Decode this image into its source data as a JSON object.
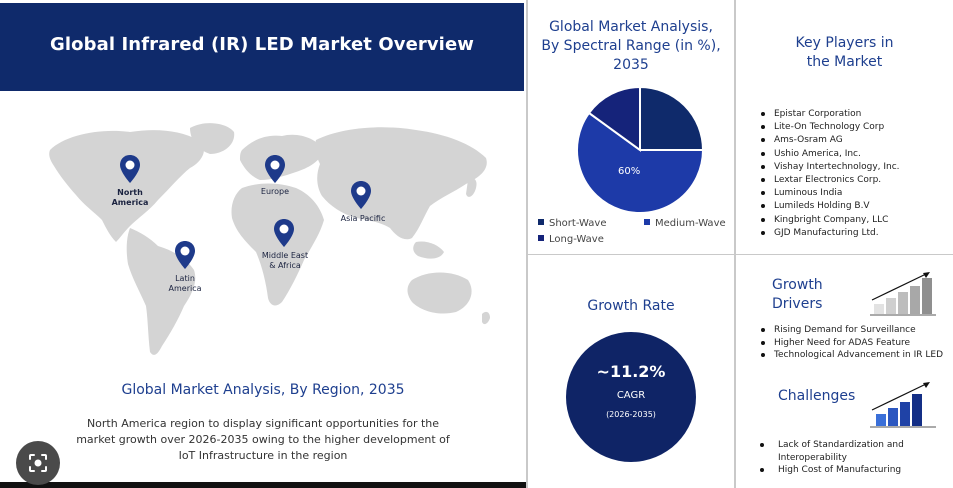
{
  "header": {
    "title": "Global Infrared (IR) LED Market Overview"
  },
  "map": {
    "regions": [
      {
        "name": "North America",
        "line1": "North",
        "line2": "America",
        "bold": true
      },
      {
        "name": "Europe",
        "line1": "Europe",
        "line2": "",
        "bold": false
      },
      {
        "name": "Asia Pacific",
        "line1": "Asia Pacific",
        "line2": "",
        "bold": false
      },
      {
        "name": "Middle East & Africa",
        "line1": "Middle East",
        "line2": "& Africa",
        "bold": false
      },
      {
        "name": "Latin America",
        "line1": "Latin",
        "line2": "America",
        "bold": false
      }
    ],
    "title": "Global Market Analysis, By Region, 2035",
    "description": "North America region to display significant opportunities  for the market growth over 2026-2035 owing to the higher development of IoT Infrastructure in the region",
    "pin_color": "#1e3a8a",
    "land_color": "#d4d4d4"
  },
  "spectral": {
    "title_line1": "Global Market Analysis,",
    "title_line2": "By Spectral Range (in %),",
    "title_line3": "2035",
    "slice_label": "60%",
    "legend": [
      {
        "label": "Short-Wave",
        "color": "#0f2a6b"
      },
      {
        "label": "Medium-Wave",
        "color": "#1d3aa8"
      },
      {
        "label": "Long-Wave",
        "color": "#15237a"
      }
    ]
  },
  "chart_data": {
    "type": "pie",
    "title": "Global Market Analysis, By Spectral Range (in %), 2035",
    "categories": [
      "Short-Wave",
      "Medium-Wave",
      "Long-Wave"
    ],
    "values": [
      25,
      60,
      15
    ],
    "colors": [
      "#0f2a6b",
      "#1d3aa8",
      "#15237a"
    ],
    "data_labels": [
      "",
      "60%",
      ""
    ],
    "legend_position": "bottom"
  },
  "players": {
    "title_line1": "Key Players in",
    "title_line2": "the Market",
    "items": [
      "Epistar Corporation",
      "Lite-On Technology Corp",
      "Ams-Osram AG",
      "Ushio America, Inc.",
      "Vishay Intertechnology,  Inc.",
      "Lextar Electronics Corp.",
      "Luminous India",
      "Lumileds Holding B.V",
      "Kingbright Company, LLC",
      "GJD Manufacturing Ltd."
    ]
  },
  "growth": {
    "title": "Growth Rate",
    "value": "~11.2%",
    "label": "CAGR",
    "period": "(2026-2035)",
    "circle_color": "#0f2466"
  },
  "drivers": {
    "title_line1": "Growth",
    "title_line2": "Drivers",
    "items": [
      "Rising Demand for Surveillance",
      "Higher Need for ADAS  Feature",
      "Technological Advancement in IR LED"
    ]
  },
  "challenges": {
    "title": "Challenges",
    "items": [
      "Lack of Standardization and Interoperability",
      "High Cost of Manufacturing"
    ]
  },
  "icons": {
    "lens": "lens-search-icon",
    "pin": "location-pin-icon",
    "bars_gray": "bar-chart-up-icon",
    "bars_blue": "bar-chart-up-icon"
  }
}
